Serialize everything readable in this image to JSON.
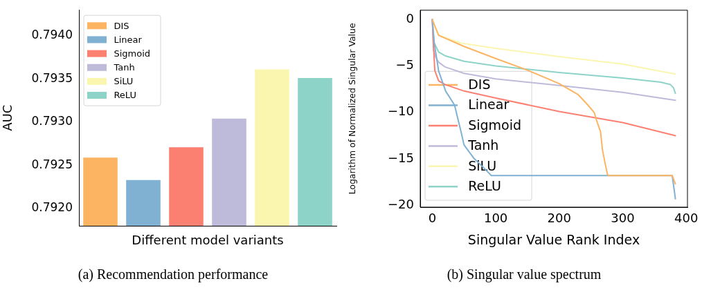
{
  "chart_data": [
    {
      "type": "bar",
      "ylabel": "AUC",
      "xlabel": "Different model variants",
      "annotations": [
        "(a) Recommendation performance"
      ],
      "categories": [
        null,
        null,
        null,
        null,
        null,
        null
      ],
      "series": [
        {
          "name": "DIS",
          "color": "#fdb462",
          "values": [
            0.79259,
            null,
            null,
            null,
            null,
            null
          ]
        },
        {
          "name": "Linear",
          "color": "#80b1d3",
          "values": [
            null,
            0.79233,
            null,
            null,
            null,
            null
          ]
        },
        {
          "name": "Sigmoid",
          "color": "#fb8072",
          "values": [
            null,
            null,
            0.79271,
            null,
            null,
            null
          ]
        },
        {
          "name": "Tanh",
          "color": "#bebada",
          "values": [
            null,
            null,
            null,
            0.79304,
            null,
            null
          ]
        },
        {
          "name": "SiLU",
          "color": "#faf6b0",
          "values": [
            null,
            null,
            null,
            null,
            0.79361,
            null
          ]
        },
        {
          "name": "ReLU",
          "color": "#8dd3c7",
          "values": [
            null,
            null,
            null,
            null,
            null,
            0.79351
          ]
        }
      ],
      "ylim": [
        0.7918,
        0.7943
      ],
      "yticks": [
        {
          "value": 0.792,
          "label": "0.7920"
        },
        {
          "value": 0.7925,
          "label": "0.7925"
        },
        {
          "value": 0.793,
          "label": "0.7930"
        },
        {
          "value": 0.7935,
          "label": "0.7935"
        },
        {
          "value": 0.794,
          "label": "0.7940"
        }
      ],
      "grid": false,
      "legend": "top left"
    },
    {
      "type": "line",
      "xlabel": "Singular Value Rank Index",
      "ylabel": "Logarithm of Normalized Singular Value",
      "annotations": [
        "(b) Singular value spectrum"
      ],
      "series": [
        {
          "name": "DIS",
          "color": "#fdb462",
          "x": [
            0,
            10,
            50,
            100,
            150,
            200,
            230,
            245,
            255,
            260,
            265,
            268,
            272,
            276,
            278,
            378,
            383
          ],
          "values": [
            0,
            -1.7,
            -2.9,
            -4.2,
            -5.45,
            -6.9,
            -8.1,
            -9.2,
            -10,
            -11.1,
            -12.05,
            -14,
            -15.4,
            -16.7,
            -16.8,
            -16.8,
            -17.7
          ]
        },
        {
          "name": "Linear",
          "color": "#80b1d3",
          "x": [
            0,
            3,
            10,
            21,
            35,
            45,
            50,
            65,
            80,
            93,
            378,
            383
          ],
          "values": [
            0,
            -2.5,
            -5.55,
            -7.7,
            -9.2,
            -12,
            -13.5,
            -14.9,
            -15.9,
            -16.8,
            -16.8,
            -19.3
          ]
        },
        {
          "name": "Sigmoid",
          "color": "#fb8072",
          "x": [
            0,
            2,
            4,
            10,
            20,
            50,
            100,
            200,
            300,
            383
          ],
          "values": [
            0,
            -3,
            -5.5,
            -6.6,
            -7,
            -7.7,
            -8.45,
            -9.9,
            -11.1,
            -12.5
          ]
        },
        {
          "name": "Tanh",
          "color": "#bebada",
          "x": [
            0,
            2,
            5,
            10,
            20,
            50,
            100,
            200,
            300,
            383
          ],
          "values": [
            0,
            -3.3,
            -4,
            -4.6,
            -5.1,
            -5.8,
            -6.4,
            -7.1,
            -7.85,
            -8.7
          ]
        },
        {
          "name": "SiLU",
          "color": "#faf6b0",
          "x": [
            0,
            4,
            10,
            46,
            100,
            200,
            300,
            383
          ],
          "values": [
            0,
            -0.8,
            -1.7,
            -2.55,
            -3.1,
            -4,
            -4.8,
            -5.87
          ]
        },
        {
          "name": "ReLU",
          "color": "#8dd3c7",
          "x": [
            0,
            3,
            10,
            20,
            50,
            100,
            200,
            300,
            360,
            375,
            380,
            383
          ],
          "values": [
            0,
            -2.5,
            -3.5,
            -3.9,
            -4.5,
            -5,
            -5.7,
            -6.3,
            -6.75,
            -7,
            -7.35,
            -7.95
          ]
        }
      ],
      "xlim": [
        -19,
        402
      ],
      "xticks": [
        0,
        100,
        200,
        300,
        400
      ],
      "ylim": [
        -20.2,
        1
      ],
      "yticks": [
        {
          "value": -20,
          "label": "−20"
        },
        {
          "value": -15,
          "label": "−15"
        },
        {
          "value": -10,
          "label": "−10"
        },
        {
          "value": -5,
          "label": "−5"
        },
        0
      ],
      "grid": false,
      "legend": "bottom left",
      "marker": "none"
    }
  ]
}
